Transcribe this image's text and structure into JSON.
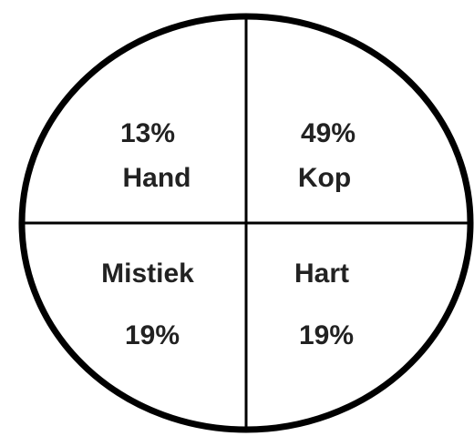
{
  "quadrants": [
    {
      "percent": "13%",
      "label": "Hand"
    },
    {
      "percent": "49%",
      "label": "Kop"
    },
    {
      "percent": "19%",
      "label": "Mistiek"
    },
    {
      "percent": "19%",
      "label": "Hart"
    }
  ]
}
